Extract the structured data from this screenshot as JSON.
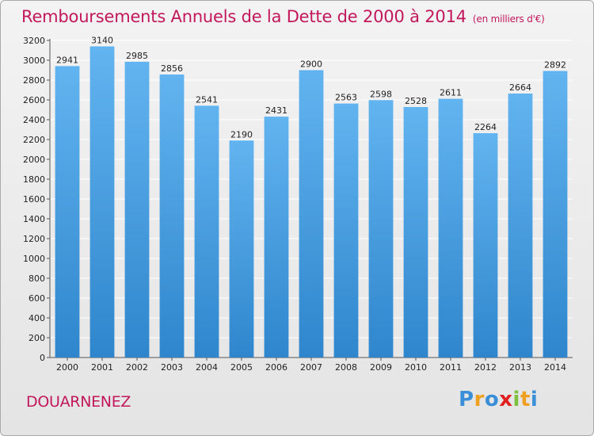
{
  "header": {
    "title": "Remboursements Annuels de la Dette de 2000 à 2014",
    "subtitle": "(en milliers d'€)"
  },
  "footer": {
    "commune": "DOUARNENEZ",
    "logo_letters": [
      "P",
      "r",
      "o",
      "x",
      "i",
      "t",
      "i"
    ],
    "logo_colors": [
      "#3a8fd8",
      "#f0a020",
      "#3a8fd8",
      "#e02020",
      "#7cc040",
      "#f0a020",
      "#3a8fd8"
    ]
  },
  "colors": {
    "bar_light": "#62b4f0",
    "bar_dark": "#2f86cc",
    "grid": "#ffffff",
    "accent": "#c2185b"
  },
  "chart_data": {
    "type": "bar",
    "categories": [
      "2000",
      "2001",
      "2002",
      "2003",
      "2004",
      "2005",
      "2006",
      "2007",
      "2008",
      "2009",
      "2010",
      "2011",
      "2012",
      "2013",
      "2014"
    ],
    "values": [
      2941,
      3140,
      2985,
      2856,
      2541,
      2190,
      2431,
      2900,
      2563,
      2598,
      2528,
      2611,
      2264,
      2664,
      2892
    ],
    "yticks": [
      0,
      200,
      400,
      600,
      800,
      1000,
      1200,
      1400,
      1600,
      1800,
      2000,
      2200,
      2400,
      2600,
      2800,
      3000,
      3200
    ],
    "ylim": [
      0,
      3200
    ],
    "grid": true,
    "data_labels": true
  }
}
